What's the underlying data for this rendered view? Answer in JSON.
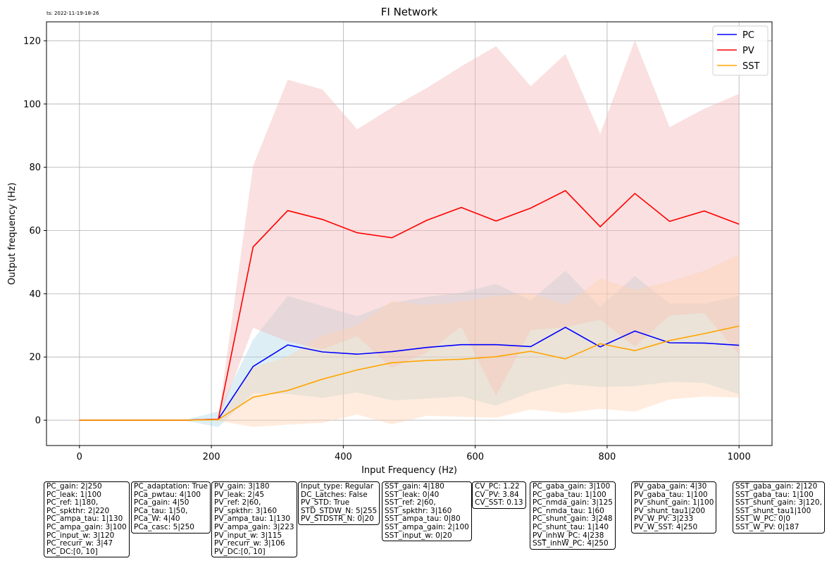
{
  "timestamp": "ts: 2022-11-19-18-26",
  "chart_data": {
    "type": "line",
    "title": "FI Network",
    "xlabel": "Input Frequency (Hz)",
    "ylabel": "Output frequency (Hz)",
    "xlim": [
      -50,
      1050
    ],
    "ylim": [
      -8,
      126
    ],
    "xticks": [
      0,
      200,
      400,
      600,
      800,
      1000
    ],
    "yticks": [
      0,
      20,
      40,
      60,
      80,
      100,
      120
    ],
    "grid": true,
    "legend_position": "top-right",
    "x": [
      0,
      52.6,
      105.3,
      157.9,
      210.5,
      263.2,
      315.8,
      368.4,
      421.1,
      473.7,
      526.3,
      578.9,
      631.6,
      684.2,
      736.8,
      789.5,
      842.1,
      894.7,
      947.4,
      1000
    ],
    "series": [
      {
        "name": "PC",
        "color": "#0000ff",
        "band_color": "#add8e6",
        "values": [
          0,
          0,
          0,
          0,
          0.3,
          17,
          23.8,
          21.6,
          20.9,
          21.7,
          23,
          23.9,
          23.9,
          23.3,
          29.4,
          23.2,
          28.2,
          24.5,
          24.4,
          23.7
        ],
        "lower": [
          0,
          0,
          0,
          0,
          -2.2,
          8.5,
          8.3,
          7.1,
          8.8,
          6.3,
          6.8,
          7.5,
          4.6,
          8.8,
          11.5,
          10.5,
          10.8,
          12.1,
          11.8,
          8.2
        ],
        "upper": [
          0,
          0,
          0,
          0,
          2.8,
          25.5,
          39.3,
          36.1,
          32.9,
          37.1,
          39,
          40.3,
          43.1,
          37.8,
          47.3,
          35.9,
          45.6,
          36.9,
          36.9,
          39.2
        ]
      },
      {
        "name": "PV",
        "color": "#ff0000",
        "band_color": "#f4b6b6",
        "values": [
          0,
          0,
          0,
          0,
          0.3,
          54.8,
          66.3,
          63.5,
          59.3,
          57.7,
          63.2,
          67.3,
          63,
          67.1,
          72.6,
          61.2,
          71.7,
          62.9,
          66.2,
          62
        ],
        "lower": [
          0,
          0,
          0,
          0,
          0,
          29.2,
          24.9,
          22.4,
          26.6,
          16.5,
          21.4,
          29.6,
          7.6,
          28.5,
          29.4,
          31.8,
          23.2,
          33.1,
          33.9,
          20.8
        ],
        "upper": [
          0,
          0,
          0,
          0,
          0.6,
          80.4,
          107.7,
          104.6,
          92.0,
          98.9,
          105.0,
          111.9,
          118.3,
          105.6,
          115.8,
          90.6,
          120.2,
          92.7,
          98.5,
          103.2
        ]
      },
      {
        "name": "SST",
        "color": "#ffa500",
        "band_color": "#ffd2b0",
        "values": [
          0,
          0,
          0,
          0,
          0.2,
          7.3,
          9.4,
          13,
          15.9,
          18.2,
          18.9,
          19.3,
          20.1,
          21.8,
          19.4,
          24.2,
          22,
          25.2,
          27.4,
          29.8
        ],
        "lower": [
          0,
          0,
          0,
          0,
          -0.2,
          -2.1,
          -1.4,
          -0.8,
          1.8,
          -1.3,
          1.4,
          1.1,
          0.8,
          3.4,
          2.3,
          3.6,
          2.7,
          6.6,
          7.5,
          7.2
        ],
        "upper": [
          0,
          0,
          0,
          0,
          0.6,
          16.7,
          20.2,
          26.8,
          30,
          37.7,
          36.4,
          37.5,
          39.4,
          40.2,
          36.5,
          44.8,
          41.3,
          43.8,
          47.3,
          52.4
        ]
      }
    ]
  },
  "param_boxes": [
    {
      "left": 62,
      "lines": [
        "PC_gain: 2|250",
        "PC_leak: 1|100",
        "PC_ref: 1|180,",
        "PC_spkthr: 2|220",
        "PC_ampa_tau: 1|130",
        "PC_ampa_gain: 3|100",
        "PC_input_w: 3|120",
        "PC_recurr_w: 3|47",
        "PC_DC:[0, 10]"
      ]
    },
    {
      "left": 186,
      "lines": [
        "PC_adaptation: True",
        "PCa_pwtau: 4|100",
        "PCa_gain: 4|50",
        "PCa_tau: 1|50,",
        "PCa_W: 4|40",
        "PCa_casc: 5|250"
      ]
    },
    {
      "left": 300,
      "lines": [
        "PV_gain: 3|180",
        "PV_leak: 2|45",
        "PV_ref: 2|60,",
        "PV_spkthr: 3|160",
        "PV_ampa_tau: 1|130",
        "PV_ampa_gain: 3|223",
        "PV_input_w: 3|115",
        "PV_recurr_w: 3|106",
        "PV_DC:[0, 10]"
      ]
    },
    {
      "left": 423,
      "lines": [
        "Input_type: Regular",
        "DC_Latches: False",
        "PV_STD: True",
        "STD_STDW_N: 5|255",
        "PV_STDSTR_N: 0|20"
      ]
    },
    {
      "left": 542,
      "lines": [
        "SST_gain: 4|180",
        "SST_leak: 0|40",
        "SST_ref: 2|60,",
        "SST_spkthr: 3|160",
        "SST_ampa_tau: 0|80",
        "SST_ampa_gain: 2|100",
        "SST_input_w: 0|20"
      ]
    },
    {
      "left": 670,
      "lines": [
        "CV_PC: 1.22",
        "CV_PV: 3.84",
        "CV_SST: 0.13"
      ]
    },
    {
      "left": 752,
      "lines": [
        "PC_gaba_gain: 3|100",
        "PC_gaba_tau: 1|100",
        "PC_nmda_gain: 3|125",
        "PC_nmda_tau: 1|60",
        "PC_shunt_gain: 3|248",
        "PC_shunt_tau: 1|140",
        "PV_inhW_PC: 4|238",
        "SST_inhW_PC: 4|250"
      ]
    },
    {
      "left": 896,
      "lines": [
        "PV_gaba_gain: 4|30",
        "PV_gaba_tau: 1|100",
        "PV_shunt_gain: 1|100",
        "PV_shunt_tau1|200",
        "PV_W_PV: 3|233",
        "PV_W_SST: 4|250"
      ]
    },
    {
      "left": 1040,
      "lines": [
        "SST_gaba_gain: 2|120",
        "SST_gaba_tau: 1|100",
        "SST_shunt_gain: 3|120,",
        "SST_shunt_tau1|100",
        "SST_W_PC: 0|0",
        "SST_W_PV: 0|187"
      ]
    }
  ]
}
